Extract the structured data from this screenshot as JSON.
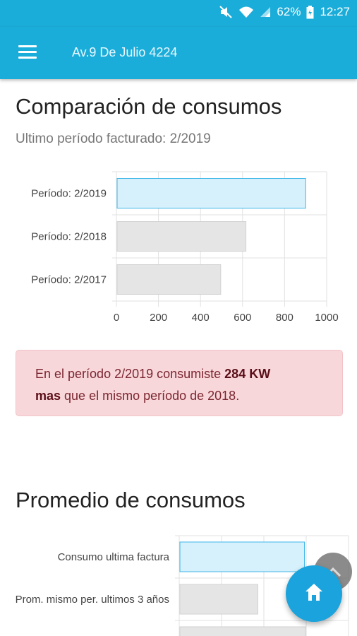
{
  "status_bar": {
    "battery": "62%",
    "time": "12:27"
  },
  "app_bar": {
    "title": "Av.9 De Julio 4224"
  },
  "comparison": {
    "title": "Comparación de consumos",
    "subtitle": "Ultimo período facturado: 2/2019"
  },
  "alert": {
    "prefix": "En el período 2/2019 consumiste ",
    "amount": "284 KW",
    "mas": "mas",
    "suffix": " que el mismo período de 2018."
  },
  "average": {
    "title": "Promedio de consumos"
  },
  "chart_data": [
    {
      "type": "bar",
      "orientation": "horizontal",
      "categories": [
        "Período: 2/2019",
        "Período: 2/2018",
        "Período: 2/2017"
      ],
      "values": [
        900,
        616,
        496
      ],
      "xlim": [
        0,
        1000
      ],
      "xticks": [
        "0",
        "200",
        "400",
        "600",
        "800",
        "1000"
      ],
      "colors": [
        "#d6f1fb",
        "#e5e5e5",
        "#e5e5e5"
      ],
      "borders": [
        "#3fb6e8",
        "#d2d2d2",
        "#d2d2d2"
      ]
    },
    {
      "type": "bar",
      "orientation": "horizontal",
      "categories": [
        "Consumo ultima factura",
        "Prom. mismo per. ultimos 3 años"
      ],
      "values": [
        900,
        565
      ]
    }
  ]
}
